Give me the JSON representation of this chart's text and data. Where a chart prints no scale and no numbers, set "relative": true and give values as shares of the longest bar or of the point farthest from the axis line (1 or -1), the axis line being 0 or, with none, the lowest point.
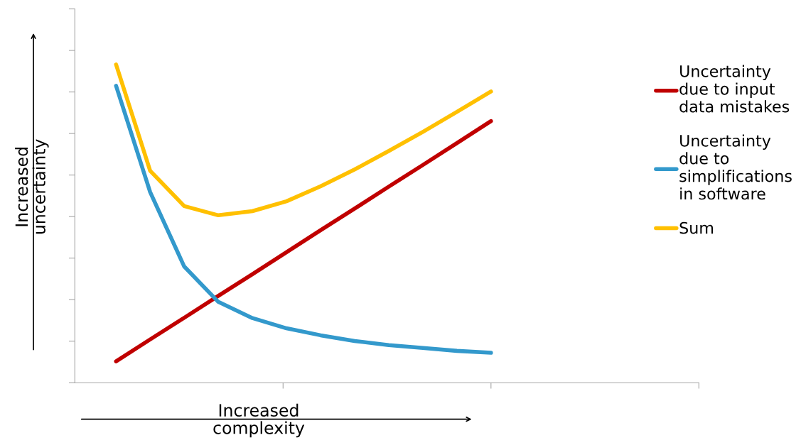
{
  "chart_data": {
    "type": "line",
    "relative": true,
    "xlabel": "Increased\ncomplexity",
    "ylabel": "Increased\nuncertainty",
    "categories": [
      null,
      null,
      null,
      null,
      null,
      null,
      null,
      null,
      null,
      null,
      null,
      null
    ],
    "series": [
      {
        "name": "Uncertainty\ndue to input\ndata mistakes",
        "color": "#c00000",
        "values": [
          0.067,
          0.136,
          0.204,
          0.273,
          0.341,
          0.41,
          0.479,
          0.547,
          0.616,
          0.684,
          0.753,
          0.822
        ]
      },
      {
        "name": "Uncertainty\ndue to\nsimplifications\nin software",
        "color": "#3399cc",
        "values": [
          0.933,
          0.599,
          0.365,
          0.254,
          0.203,
          0.171,
          0.149,
          0.131,
          0.118,
          0.109,
          0.1,
          0.094
        ]
      },
      {
        "name": "Sum",
        "color": "#ffc000",
        "values": [
          1.0,
          0.666,
          0.555,
          0.526,
          0.539,
          0.57,
          0.617,
          0.67,
          0.728,
          0.788,
          0.851,
          0.915
        ]
      }
    ],
    "legend": "right",
    "grid": false,
    "marker": "none",
    "line_style": "solid"
  }
}
